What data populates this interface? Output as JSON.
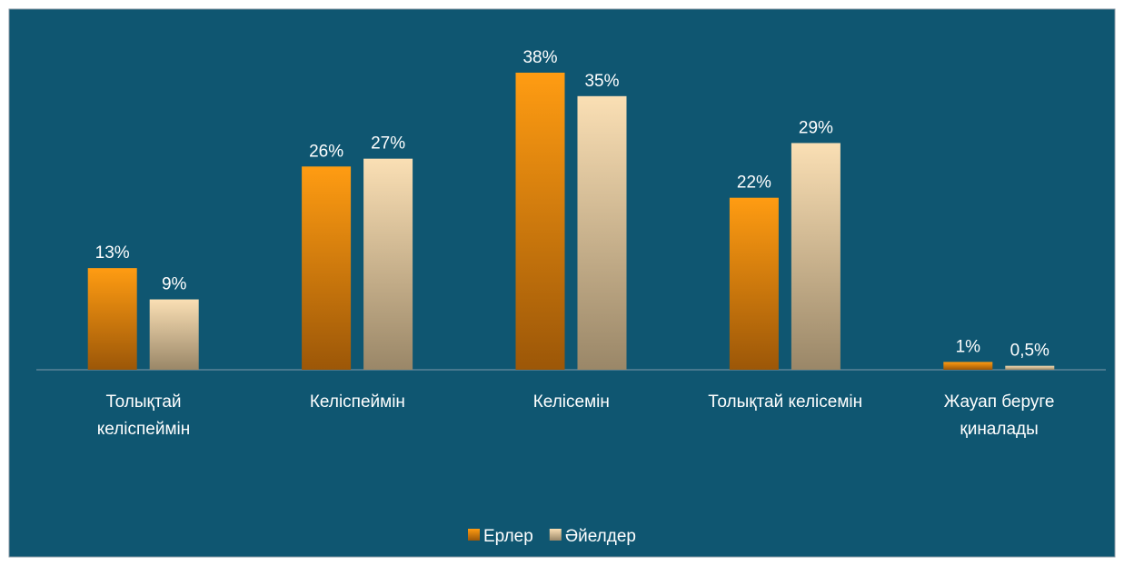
{
  "chart_data": {
    "type": "bar",
    "categories": [
      "Толықтай\nкеліспеймін",
      "Келіспеймін",
      "Келісемін",
      "Толықтай келісемін",
      "Жауап беруге\nқиналады"
    ],
    "series": [
      {
        "name": "Ерлер",
        "color": "#f7940e",
        "values": [
          13,
          26,
          38,
          22,
          1
        ],
        "value_labels": [
          "13%",
          "26%",
          "38%",
          "22%",
          "1%"
        ]
      },
      {
        "name": "Әйелдер",
        "color": "#f3d6a8",
        "values": [
          9,
          27,
          35,
          29,
          0.5
        ],
        "value_labels": [
          "9%",
          "27%",
          "35%",
          "29%",
          "0,5%"
        ]
      }
    ],
    "legend": "bottom"
  }
}
